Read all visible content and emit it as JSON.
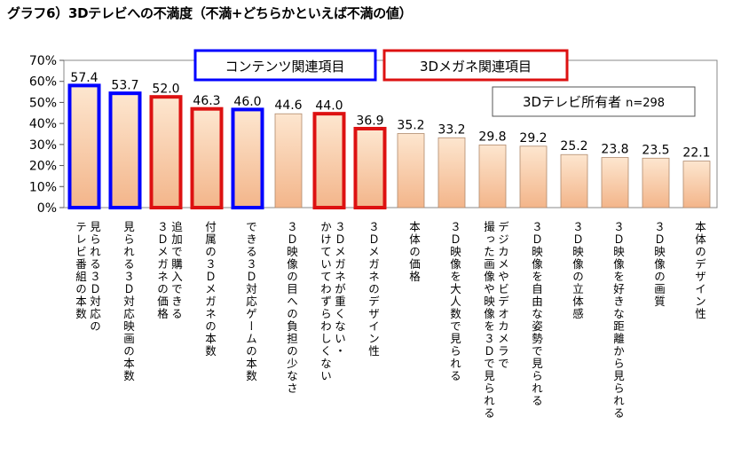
{
  "title": "グラフ6）3Dテレビへの不満度（不満+どちらかといえば不満の値）",
  "legend": {
    "content": "コンテンツ関連項目",
    "glasses": "3Dメガネ関連項目",
    "owner_note": "3Dテレビ所有者",
    "n_label": "n=298"
  },
  "colors": {
    "bar_fill_top": "#fde6cf",
    "bar_fill_bottom": "#f3b58a",
    "bar_edge": "#b08a6d",
    "content_outline": "#0000ff",
    "glasses_outline": "#dd1111"
  },
  "chart_data": {
    "type": "bar",
    "title": "",
    "xlabel": "",
    "ylabel": "",
    "ylim": [
      0,
      70
    ],
    "yticks": [
      "0%",
      "10%",
      "20%",
      "30%",
      "40%",
      "50%",
      "60%",
      "70%"
    ],
    "grid": false,
    "categories": [
      "見られる３Ｄ対応の,テレビ番組の本数",
      "見られる３Ｄ対応映画の本数",
      "追加で購入できる,３Ｄメガネの価格",
      "付属の３Ｄメガネの本数",
      "できる３Ｄ対応ゲームの本数",
      "３Ｄ映像の目への負担の少なさ",
      "３Ｄメガネが重くない・,かけていてわずらわしくない",
      "３Ｄメガネのデザイン性",
      "本体の価格",
      "３Ｄ映像を大人数で見られる",
      "デジカメやビデオカメラで,撮った画像や映像を３Ｄで見られる",
      "３Ｄ映像を自由な姿勢で見られる",
      "３Ｄ映像の立体感",
      "３Ｄ映像を好きな距離から見られる",
      "３Ｄ映像の画質",
      "本体のデザイン性"
    ],
    "values": [
      57.4,
      53.7,
      52.0,
      46.3,
      46.0,
      44.6,
      44.0,
      36.9,
      35.2,
      33.2,
      29.8,
      29.2,
      25.2,
      23.8,
      23.5,
      22.1
    ],
    "value_labels": [
      "57.4",
      "53.7",
      "52.0",
      "46.3",
      "46.0",
      "44.6",
      "44.0",
      "36.9",
      "35.2",
      "33.2",
      "29.8",
      "29.2",
      "25.2",
      "23.8",
      "23.5",
      "22.1"
    ],
    "groups": [
      "content",
      "content",
      "glasses",
      "glasses",
      "content",
      "none",
      "glasses",
      "glasses",
      "none",
      "none",
      "none",
      "none",
      "none",
      "none",
      "none",
      "none"
    ]
  }
}
